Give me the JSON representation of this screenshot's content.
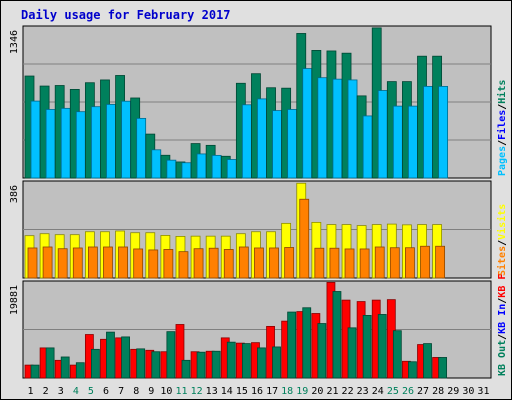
{
  "chart_data": {
    "title": "Daily usage for February 2017",
    "type": "bar",
    "categories": [
      "1",
      "2",
      "3",
      "4",
      "5",
      "6",
      "7",
      "8",
      "9",
      "10",
      "11",
      "12",
      "13",
      "14",
      "15",
      "16",
      "17",
      "18",
      "19",
      "20",
      "21",
      "22",
      "23",
      "24",
      "25",
      "26",
      "27",
      "28",
      "29",
      "30",
      "31"
    ],
    "weekend_days": [
      4,
      5,
      11,
      12,
      18,
      19,
      25,
      26
    ],
    "panels": [
      {
        "max_label": "1346",
        "ylim": [
          0,
          1346
        ],
        "legend": [
          {
            "text": "Hits",
            "color": "#00805c"
          },
          {
            "text": "Files",
            "color": "#0000ff"
          },
          {
            "text": "Pages",
            "color": "#00c0ff"
          }
        ],
        "series": [
          {
            "name": "Hits",
            "color": "#00805c",
            "values": [
              915,
              825,
              830,
              795,
              855,
              880,
              920,
              718,
              394,
              204,
              144,
              309,
              293,
              195,
              850,
              936,
              810,
              806,
              1297,
              1145,
              1140,
              1120,
              737,
              1347,
              865,
              865,
              1093,
              1093,
              0,
              0,
              0
            ]
          },
          {
            "name": "Files",
            "color": "#0000ff",
            "values": [
              0,
              0,
              0,
              0,
              0,
              0,
              0,
              0,
              0,
              0,
              0,
              0,
              0,
              0,
              0,
              0,
              0,
              0,
              0,
              0,
              0,
              0,
              0,
              0,
              0,
              0,
              0,
              0,
              0,
              0,
              0
            ]
          },
          {
            "name": "Pages",
            "color": "#00c0ff",
            "values": [
              690,
              615,
              625,
              595,
              640,
              660,
              689,
              535,
              253,
              160,
              137,
              216,
              203,
              166,
              657,
              710,
              605,
              615,
              982,
              900,
              887,
              880,
              557,
              785,
              645,
              645,
              822,
              822,
              0,
              0,
              0
            ]
          }
        ]
      },
      {
        "max_label": "386",
        "ylim": [
          0,
          386
        ],
        "legend": [
          {
            "text": "Visits",
            "color": "#ffff00"
          },
          {
            "text": "Sites",
            "color": "#ff8000"
          }
        ],
        "series": [
          {
            "name": "Visits",
            "color": "#ffff00",
            "values": [
              172,
              180,
              176,
              176,
              188,
              188,
              191,
              184,
              184,
              173,
              169,
              170,
              170,
              170,
              180,
              188,
              188,
              222,
              385,
              226,
              217,
              217,
              213,
              217,
              219,
              216,
              217,
              217,
              0,
              0,
              0
            ]
          },
          {
            "name": "Sites",
            "color": "#ff8000",
            "values": [
              122,
              126,
              119,
              122,
              126,
              126,
              126,
              118,
              114,
              116,
              107,
              119,
              121,
              116,
              126,
              122,
              122,
              124,
              320,
              121,
              121,
              118,
              118,
              126,
              123,
              123,
              129,
              129,
              0,
              0,
              0
            ]
          }
        ]
      },
      {
        "max_label": "19881",
        "ylim": [
          0,
          19881
        ],
        "legend": [
          {
            "text": "KB F",
            "color": "#ff0000"
          },
          {
            "text": "KB In",
            "color": "#0000ff"
          },
          {
            "text": "KB Out",
            "color": "#00805c"
          }
        ],
        "series": [
          {
            "name": "KB F",
            "color": "#ff0000",
            "values": [
              2700,
              6300,
              3700,
              2700,
              9100,
              8100,
              8400,
              6000,
              5800,
              5500,
              11200,
              5500,
              5600,
              8400,
              7300,
              7400,
              10800,
              11900,
              13900,
              13500,
              20000,
              16300,
              16000,
              16300,
              16400,
              3500,
              7000,
              4300,
              0,
              0,
              0
            ]
          },
          {
            "name": "KB In",
            "color": "#0000ff",
            "values": [
              0,
              0,
              0,
              0,
              0,
              0,
              0,
              0,
              0,
              0,
              0,
              0,
              0,
              0,
              0,
              0,
              0,
              0,
              0,
              0,
              0,
              0,
              0,
              0,
              0,
              0,
              0,
              0,
              0,
              0,
              0
            ]
          },
          {
            "name": "KB Out",
            "color": "#00805c",
            "values": [
              2700,
              6300,
              4400,
              3200,
              6000,
              9600,
              8600,
              6100,
              5500,
              9700,
              3700,
              5400,
              5600,
              7500,
              7200,
              6300,
              6500,
              13800,
              14700,
              11400,
              18100,
              10500,
              13100,
              13300,
              9900,
              3400,
              7200,
              4300,
              0,
              0,
              0
            ]
          }
        ]
      }
    ]
  }
}
